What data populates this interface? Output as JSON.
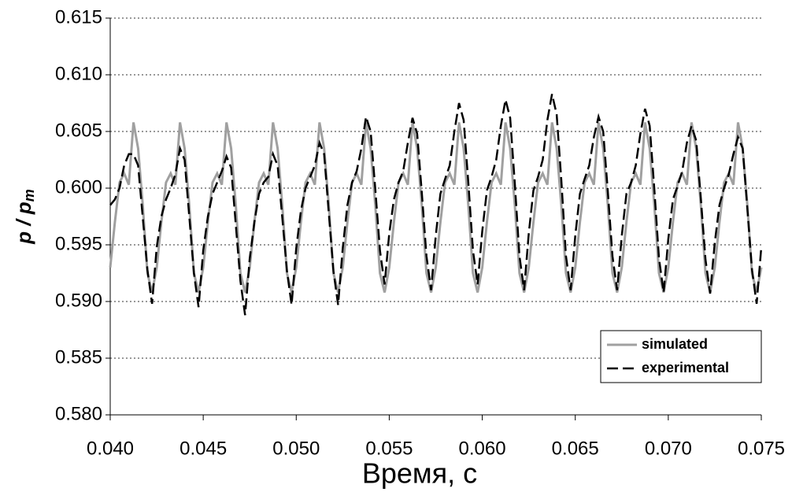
{
  "chart_data": {
    "type": "line",
    "xlabel": "Время, с",
    "ylabel": "p / p",
    "ylabel_sub": "m",
    "xlim": [
      0.04,
      0.075
    ],
    "ylim": [
      0.58,
      0.615
    ],
    "xticks": [
      {
        "value": 0.04,
        "label": "0.040"
      },
      {
        "value": 0.045,
        "label": "0.045"
      },
      {
        "value": 0.05,
        "label": "0.050"
      },
      {
        "value": 0.055,
        "label": "0.055"
      },
      {
        "value": 0.06,
        "label": "0.060"
      },
      {
        "value": 0.065,
        "label": "0.065"
      },
      {
        "value": 0.07,
        "label": "0.070"
      },
      {
        "value": 0.075,
        "label": "0.075"
      }
    ],
    "yticks": [
      {
        "value": 0.58,
        "label": "0.580"
      },
      {
        "value": 0.585,
        "label": "0.585"
      },
      {
        "value": 0.59,
        "label": "0.590"
      },
      {
        "value": 0.595,
        "label": "0.595"
      },
      {
        "value": 0.6,
        "label": "0.600"
      },
      {
        "value": 0.605,
        "label": "0.605"
      },
      {
        "value": 0.61,
        "label": "0.610"
      },
      {
        "value": 0.615,
        "label": "0.615"
      }
    ],
    "grid": true,
    "legend": "lower right",
    "x": [
      0.04,
      0.04025,
      0.0405,
      0.04075,
      0.041,
      0.04125,
      0.0415,
      0.04175,
      0.042,
      0.04225,
      0.0425,
      0.04275,
      0.043,
      0.04325,
      0.0435,
      0.04375,
      0.044,
      0.04425,
      0.0445,
      0.04475,
      0.045,
      0.04525,
      0.0455,
      0.04575,
      0.046,
      0.04625,
      0.0465,
      0.04675,
      0.047,
      0.04725,
      0.0475,
      0.04775,
      0.048,
      0.04825,
      0.0485,
      0.04875,
      0.049,
      0.04925,
      0.0495,
      0.04975,
      0.05,
      0.05025,
      0.0505,
      0.05075,
      0.051,
      0.05125,
      0.0515,
      0.05175,
      0.052,
      0.05225,
      0.0525,
      0.05275,
      0.053,
      0.05325,
      0.0535,
      0.05375,
      0.054,
      0.05425,
      0.0545,
      0.05475,
      0.055,
      0.05525,
      0.0555,
      0.05575,
      0.056,
      0.05625,
      0.0565,
      0.05675,
      0.057,
      0.05725,
      0.0575,
      0.05775,
      0.058,
      0.05825,
      0.0585,
      0.05875,
      0.059,
      0.05925,
      0.0595,
      0.05975,
      0.06,
      0.06025,
      0.0605,
      0.06075,
      0.061,
      0.06125,
      0.0615,
      0.06175,
      0.062,
      0.06225,
      0.0625,
      0.06275,
      0.063,
      0.06325,
      0.0635,
      0.06375,
      0.064,
      0.06425,
      0.0645,
      0.06475,
      0.065,
      0.06525,
      0.0655,
      0.06575,
      0.066,
      0.06625,
      0.0665,
      0.06675,
      0.067,
      0.06725,
      0.0675,
      0.06775,
      0.068,
      0.06825,
      0.0685,
      0.06875,
      0.069,
      0.06925,
      0.0695,
      0.06975,
      0.07,
      0.07025,
      0.0705,
      0.07075,
      0.071,
      0.07125,
      0.0715,
      0.07175,
      0.072,
      0.07225,
      0.0725,
      0.07275,
      0.073,
      0.07325,
      0.0735,
      0.07375,
      0.074,
      0.07425,
      0.0745,
      0.07475,
      0.075
    ],
    "series": [
      {
        "name": "simulated",
        "color": "#a0a0a0",
        "dash": "solid",
        "values": [
          0.593,
          0.597,
          0.6005,
          0.6013,
          0.6003,
          0.6058,
          0.6035,
          0.5985,
          0.5925,
          0.5908,
          0.593,
          0.597,
          0.6005,
          0.6013,
          0.6003,
          0.6058,
          0.6035,
          0.5985,
          0.5925,
          0.5908,
          0.593,
          0.597,
          0.6005,
          0.6013,
          0.6003,
          0.6058,
          0.6035,
          0.5985,
          0.5925,
          0.5908,
          0.593,
          0.597,
          0.6005,
          0.6013,
          0.6003,
          0.6058,
          0.6035,
          0.5985,
          0.5925,
          0.5908,
          0.593,
          0.597,
          0.6005,
          0.6013,
          0.6003,
          0.6058,
          0.6035,
          0.5985,
          0.5925,
          0.5908,
          0.593,
          0.597,
          0.6005,
          0.6013,
          0.6003,
          0.6058,
          0.6035,
          0.5985,
          0.5925,
          0.5908,
          0.593,
          0.597,
          0.6005,
          0.6013,
          0.6003,
          0.6058,
          0.6035,
          0.5985,
          0.5925,
          0.5908,
          0.593,
          0.597,
          0.6005,
          0.6013,
          0.6003,
          0.6058,
          0.6035,
          0.5985,
          0.5925,
          0.5908,
          0.593,
          0.597,
          0.6005,
          0.6013,
          0.6003,
          0.6058,
          0.6035,
          0.5985,
          0.5925,
          0.5908,
          0.593,
          0.597,
          0.6005,
          0.6013,
          0.6003,
          0.6058,
          0.6035,
          0.5985,
          0.5925,
          0.5908,
          0.593,
          0.597,
          0.6005,
          0.6013,
          0.6003,
          0.6058,
          0.6035,
          0.5985,
          0.5925,
          0.5908,
          0.593,
          0.597,
          0.6005,
          0.6013,
          0.6003,
          0.6058,
          0.6035,
          0.5985,
          0.5925,
          0.5908,
          0.593,
          0.597,
          0.6005,
          0.6013,
          0.6003,
          0.6058,
          0.6035,
          0.5985,
          0.5925,
          0.5908,
          0.593,
          0.597,
          0.6005,
          0.6013,
          0.6003,
          0.6058,
          0.6035,
          0.5985,
          0.5925,
          0.5908,
          0.593
        ]
      },
      {
        "name": "experimental",
        "color": "#000000",
        "dash": "dashed",
        "values": [
          0.5985,
          0.599,
          0.6,
          0.602,
          0.603,
          0.603,
          0.602,
          0.5974,
          0.5928,
          0.5898,
          0.5948,
          0.5975,
          0.599,
          0.6,
          0.6012,
          0.6035,
          0.6025,
          0.5975,
          0.5925,
          0.5895,
          0.5945,
          0.5975,
          0.5995,
          0.6005,
          0.6015,
          0.6028,
          0.6018,
          0.5968,
          0.5918,
          0.5888,
          0.5938,
          0.597,
          0.5995,
          0.6005,
          0.601,
          0.603,
          0.602,
          0.5974,
          0.5927,
          0.5897,
          0.5947,
          0.598,
          0.6,
          0.601,
          0.602,
          0.604,
          0.603,
          0.5978,
          0.5927,
          0.5897,
          0.5947,
          0.5985,
          0.6005,
          0.6015,
          0.6035,
          0.6063,
          0.605,
          0.5999,
          0.5945,
          0.5915,
          0.596,
          0.599,
          0.6005,
          0.6015,
          0.604,
          0.6062,
          0.6048,
          0.5996,
          0.594,
          0.591,
          0.5958,
          0.5995,
          0.6008,
          0.602,
          0.605,
          0.6075,
          0.606,
          0.6005,
          0.5945,
          0.5915,
          0.5962,
          0.5998,
          0.601,
          0.6025,
          0.6055,
          0.6078,
          0.6062,
          0.6004,
          0.594,
          0.591,
          0.596,
          0.5998,
          0.601,
          0.6025,
          0.606,
          0.6083,
          0.6065,
          0.6007,
          0.594,
          0.591,
          0.5958,
          0.5995,
          0.6008,
          0.602,
          0.6045,
          0.6063,
          0.605,
          0.5997,
          0.594,
          0.591,
          0.5958,
          0.5995,
          0.6005,
          0.602,
          0.6048,
          0.607,
          0.6055,
          0.5999,
          0.5938,
          0.5908,
          0.5955,
          0.599,
          0.6002,
          0.6015,
          0.604,
          0.6055,
          0.6042,
          0.5991,
          0.5937,
          0.5907,
          0.5952,
          0.5985,
          0.6,
          0.6012,
          0.603,
          0.6045,
          0.6035,
          0.5982,
          0.5928,
          0.5898,
          0.5948
        ]
      }
    ]
  }
}
